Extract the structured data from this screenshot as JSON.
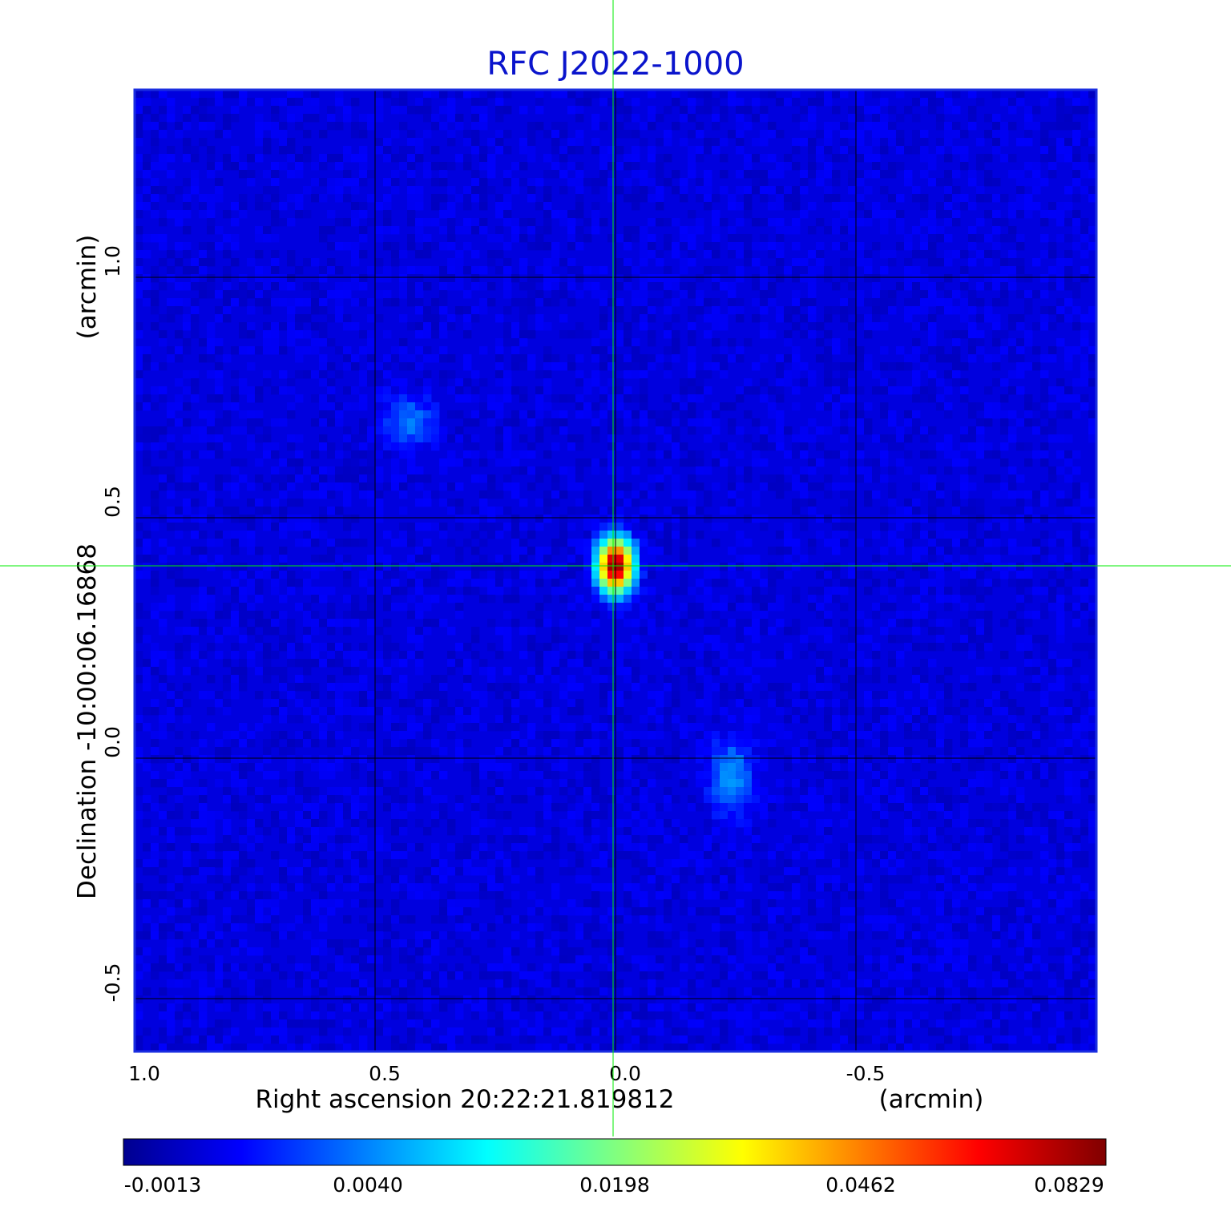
{
  "chart_data": {
    "type": "heatmap",
    "title": "RFC J2022-1000",
    "xlabel": "Right ascension  20:22:21.819812",
    "xunit": "(arcmin)",
    "ylabel": "Declination  -10:00:06.16868",
    "yunit": "(arcmin)",
    "x_ticks": [
      {
        "value": 1.0,
        "label": "1.0"
      },
      {
        "value": 0.5,
        "label": "0.5"
      },
      {
        "value": 0.0,
        "label": "0.0"
      },
      {
        "value": -0.5,
        "label": "-0.5"
      }
    ],
    "y_ticks": [
      {
        "value": 1.0,
        "label": "1.0"
      },
      {
        "value": 0.5,
        "label": "0.5"
      },
      {
        "value": 0.0,
        "label": "0.0"
      },
      {
        "value": -0.5,
        "label": "-0.5"
      }
    ],
    "xlim": [
      1.0,
      -1.0
    ],
    "ylim": [
      -0.61,
      1.39
    ],
    "grid": true,
    "crosshair": {
      "x": 0.0,
      "y": 0.4
    },
    "colormap": "jet",
    "colorbar_ticks": [
      "-0.0013",
      "0.0040",
      "0.0198",
      "0.0462",
      "0.0829"
    ],
    "colorbar_range": [
      -0.0013,
      0.0829
    ],
    "background_level": 0.0005,
    "sources": [
      {
        "x": 0.0,
        "y": 0.4,
        "peak": 0.0829,
        "sigma_x": 0.02,
        "sigma_y": 0.03
      },
      {
        "x": -0.24,
        "y": -0.04,
        "peak": 0.0042,
        "sigma_x": 0.03,
        "sigma_y": 0.05
      },
      {
        "x": 0.43,
        "y": 0.7,
        "peak": 0.0032,
        "sigma_x": 0.035,
        "sigma_y": 0.035
      }
    ],
    "colors": {
      "title": "#0a14cc",
      "grid": "#000000",
      "crosshair": "#00ee00",
      "frame": "#1a2ee0"
    }
  }
}
